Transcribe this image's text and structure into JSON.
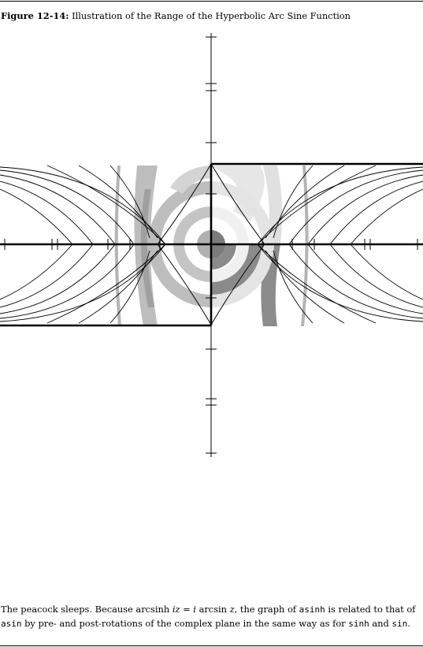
{
  "figure": {
    "label": "Figure 12-14:",
    "title": "Illustration of the Range of the Hyperbolic Arc Sine Function"
  },
  "caption": {
    "part1": "The peacock sleeps. Because arcsinh ",
    "math1": "iz",
    "part2": " = ",
    "math2": "i",
    "part3": " arcsin ",
    "math3": "z",
    "part4": ", the graph of ",
    "fn1": "asinh",
    "part5": " is related to that of ",
    "fn2": "asin",
    "part6": " by pre- and post-rotations of the complex plane in the same way as for ",
    "fn3": "sinh",
    "part7": " and ",
    "fn4": "sin",
    "part8": "."
  },
  "colors": {
    "ink": "#000000",
    "background": "#ffffff",
    "band_light": "#d8d8d8",
    "band_lighter": "#e8e8e8",
    "band_mid": "#b4b4b4",
    "band_dark": "#8c8c8c",
    "band_darker": "#707070"
  }
}
